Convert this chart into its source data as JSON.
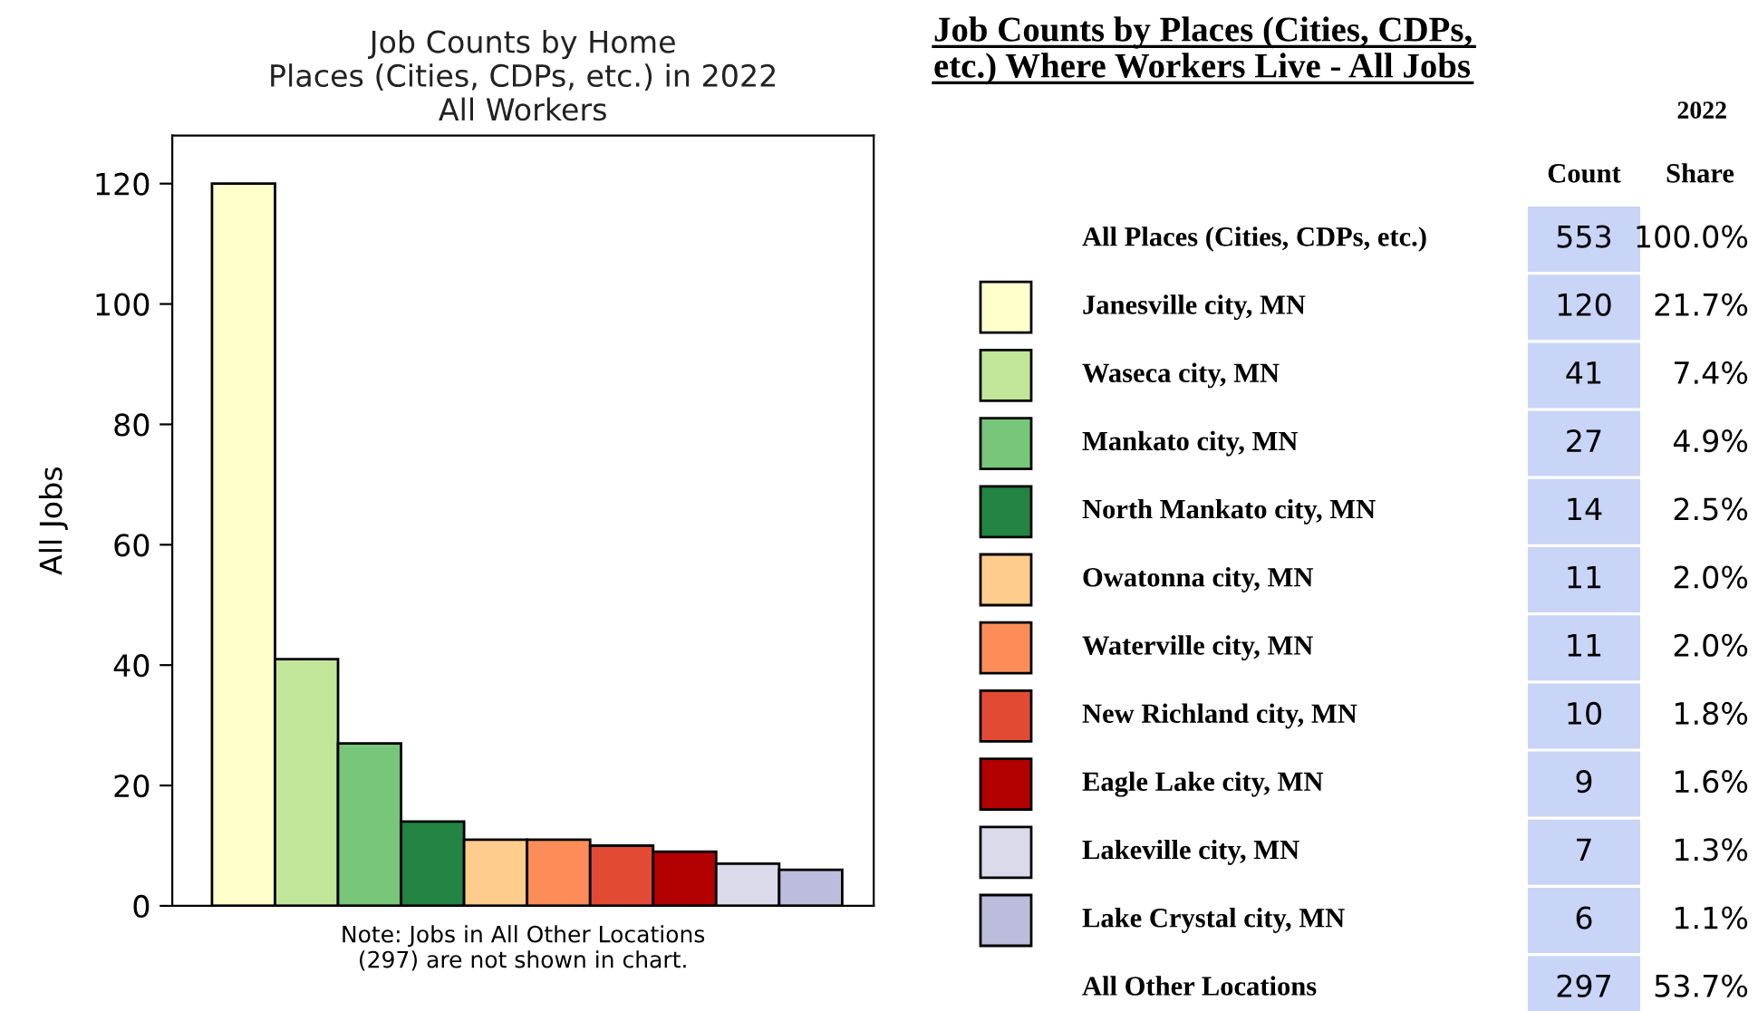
{
  "chart_data": [
    {
      "type": "bar",
      "title": "Job Counts by Home\nPlaces (Cities, CDPs, etc.) in 2022\nAll Workers",
      "ylabel": "All Jobs",
      "categories": [
        null,
        null,
        null,
        null,
        null,
        null,
        null,
        null,
        null,
        null
      ],
      "values": [
        120,
        41,
        27,
        14,
        11,
        11,
        10,
        9,
        7,
        6
      ],
      "colors": [
        "#ffffcc",
        "#c2e699",
        "#78c679",
        "#238443",
        "#fecc8c",
        "#fc8d59",
        "#e34a33",
        "#b30000",
        "#dadaeb",
        "#bcbddc"
      ],
      "ylim": [
        0,
        128
      ],
      "yticks": [
        0,
        20,
        40,
        60,
        80,
        100,
        120
      ],
      "tick_labels": "y",
      "grid": false,
      "legend": false,
      "annotations": [
        "Note: Jobs in All Other Locations\n(297) are not shown in chart."
      ]
    },
    {
      "type": "other",
      "title": "Job Counts by Places (Cities, CDPs,\netc.) Where Workers Live - All Jobs",
      "subtitle": "2022",
      "categories": [
        "All Places (Cities, CDPs, etc.)",
        "Janesville city, MN",
        "Waseca city, MN",
        "Mankato city, MN",
        "North Mankato city, MN",
        "Owatonna city, MN",
        "Waterville city, MN",
        "New Richland city, MN",
        "Eagle Lake city, MN",
        "Lakeville city, MN",
        "Lake Crystal city, MN",
        "All Other Locations"
      ],
      "colors": [
        null,
        "#ffffcc",
        "#c2e699",
        "#78c679",
        "#238443",
        "#fecc8c",
        "#fc8d59",
        "#e34a33",
        "#b30000",
        "#dadaeb",
        "#bcbddc",
        null
      ],
      "series": [
        {
          "name": "Count",
          "color": "#c9d5f7",
          "values": [
            553,
            120,
            41,
            27,
            14,
            11,
            11,
            10,
            9,
            7,
            6,
            297
          ]
        },
        {
          "name": "Share",
          "values": [
            100.0,
            21.7,
            7.4,
            4.9,
            2.5,
            2.0,
            2.0,
            1.8,
            1.6,
            1.3,
            1.1,
            53.7
          ],
          "value_labels": [
            "100.0%",
            "21.7%",
            "7.4%",
            "4.9%",
            "2.5%",
            "2.0%",
            "2.0%",
            "1.8%",
            "1.6%",
            "1.3%",
            "1.1%",
            "53.7%"
          ]
        }
      ],
      "data_labels": true
    }
  ]
}
